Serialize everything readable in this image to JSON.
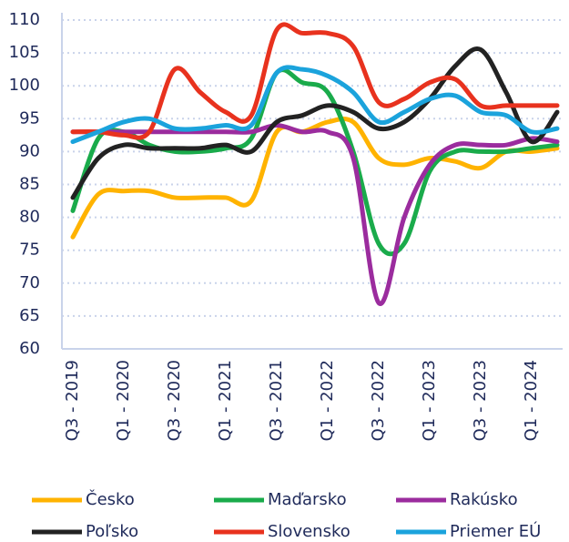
{
  "chart_data": {
    "type": "line",
    "categories": [
      "Q3 - 2019",
      null,
      "Q1 - 2020",
      null,
      "Q3 - 2020",
      null,
      "Q1 - 2021",
      null,
      "Q3 - 2021",
      null,
      "Q1 - 2022",
      null,
      "Q3 - 2022",
      null,
      "Q1 - 2023",
      null,
      "Q3 - 2023",
      null,
      "Q1 - 2024",
      null
    ],
    "series": [
      {
        "name": "Česko",
        "color": "#ffb300",
        "values": [
          77,
          83.5,
          84,
          84,
          83,
          83,
          83,
          82.5,
          93,
          93,
          94.5,
          94.5,
          89,
          88,
          89,
          88.5,
          87.5,
          90,
          90,
          90.5
        ]
      },
      {
        "name": "Maďarsko",
        "color": "#1aab4b",
        "values": [
          81,
          92,
          93,
          91,
          90,
          90,
          90.5,
          92,
          102,
          100.5,
          99,
          90,
          76,
          76,
          87,
          90,
          90,
          90,
          90.5,
          91
        ]
      },
      {
        "name": "Rakúsko",
        "color": "#9b2c9e",
        "values": [
          93,
          93,
          93,
          93,
          93,
          93,
          93,
          93,
          94,
          93,
          93,
          89,
          67,
          80,
          88,
          91,
          91,
          91,
          92,
          91.5
        ]
      },
      {
        "name": "Poľsko",
        "color": "#222222",
        "values": [
          83,
          89,
          91,
          90.5,
          90.5,
          90.5,
          91,
          90,
          94.5,
          95.5,
          97,
          96,
          93.5,
          94.5,
          98,
          103,
          105.5,
          99,
          91.5,
          96
        ]
      },
      {
        "name": "Slovensko",
        "color": "#e8321e",
        "values": [
          93,
          93,
          92.5,
          93,
          102.5,
          99,
          96,
          95.5,
          108.5,
          108,
          108,
          106,
          97.5,
          98,
          100.5,
          101,
          97,
          97,
          97,
          97
        ]
      },
      {
        "name": "Priemer EÚ",
        "color": "#1ba3dc",
        "values": [
          91.5,
          93,
          94.5,
          95,
          93.5,
          93.5,
          94,
          94,
          102,
          102.5,
          101.5,
          99,
          94.5,
          96,
          98,
          98.5,
          96,
          95.5,
          93,
          93.5
        ]
      }
    ],
    "ylim": [
      60,
      110
    ],
    "yticks": [
      60,
      65,
      70,
      75,
      80,
      85,
      90,
      95,
      100,
      105,
      110
    ],
    "grid": true
  }
}
